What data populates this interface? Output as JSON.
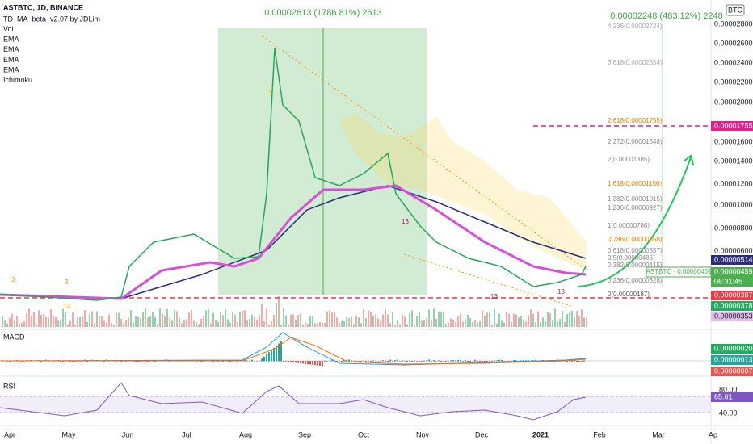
{
  "header": {
    "symbol": "ASTBTC, 1D, BINANCE",
    "indicators": [
      "TD_MA_beta_v2.07 by JDLim",
      "Vol",
      "EMA",
      "EMA",
      "EMA",
      "EMA",
      "Ichimoku"
    ]
  },
  "currency": "BTC",
  "annotations": {
    "range_top": "0.00002613 (1786.81%) 2613",
    "range_right": "0.00002248 (483.12%) 2248"
  },
  "price_axis": [
    "0.00002800",
    "0.00002600",
    "0.00002400",
    "0.00002200",
    "0.00002000",
    "0.00001600",
    "0.00001400",
    "0.00001200",
    "0.00001000",
    "0.00000800",
    "0.00000600"
  ],
  "badges": [
    {
      "text": "0.00001755",
      "color": "#e91e8c"
    },
    {
      "text": "0.00000514",
      "color": "#2a2e7a"
    },
    {
      "text": "0.00000459",
      "color": "#4caf50"
    },
    {
      "text": "06:31:45",
      "color": "#4caf50"
    },
    {
      "text": "0.00000387",
      "color": "#f23645"
    },
    {
      "text": "0.00000378",
      "color": "#22ab60"
    },
    {
      "text": "0.00000353",
      "color": "#e1bee7"
    }
  ],
  "symbol_label": "ASTBTC · 0.00000459",
  "fib_levels": [
    "4.236(0.00002724)",
    "3.618(0.00002354)",
    "2.618(0.00001755)",
    "2.272(0.00001548)",
    "2(0.00001385)",
    "1.618(0.00001156)",
    "1.382(0.00001015)",
    "1.236(0.00000927)",
    "1(0.00000786)",
    "0.786(0.00000658)",
    "0.618(0.00000557)",
    "0.5(0.00000486)",
    "0.382(0.00000415)",
    "0.236(0.00000328)",
    "0(0.00000187)"
  ],
  "td_labels": [
    "3",
    "3",
    "13",
    "3",
    "13",
    "13",
    "13"
  ],
  "macd": {
    "title": "MACD",
    "badges": [
      "0.00000020",
      "0.00000013",
      "0.00000007"
    ]
  },
  "rsi": {
    "title": "RSI",
    "axis": [
      "80.00",
      "40.00"
    ],
    "badge": "65.61"
  },
  "time_axis": [
    "Apr",
    "May",
    "Jun",
    "Jul",
    "Aug",
    "Sep",
    "Oct",
    "Nov",
    "Dec",
    "2021",
    "Feb",
    "Mar",
    "Ap"
  ]
}
